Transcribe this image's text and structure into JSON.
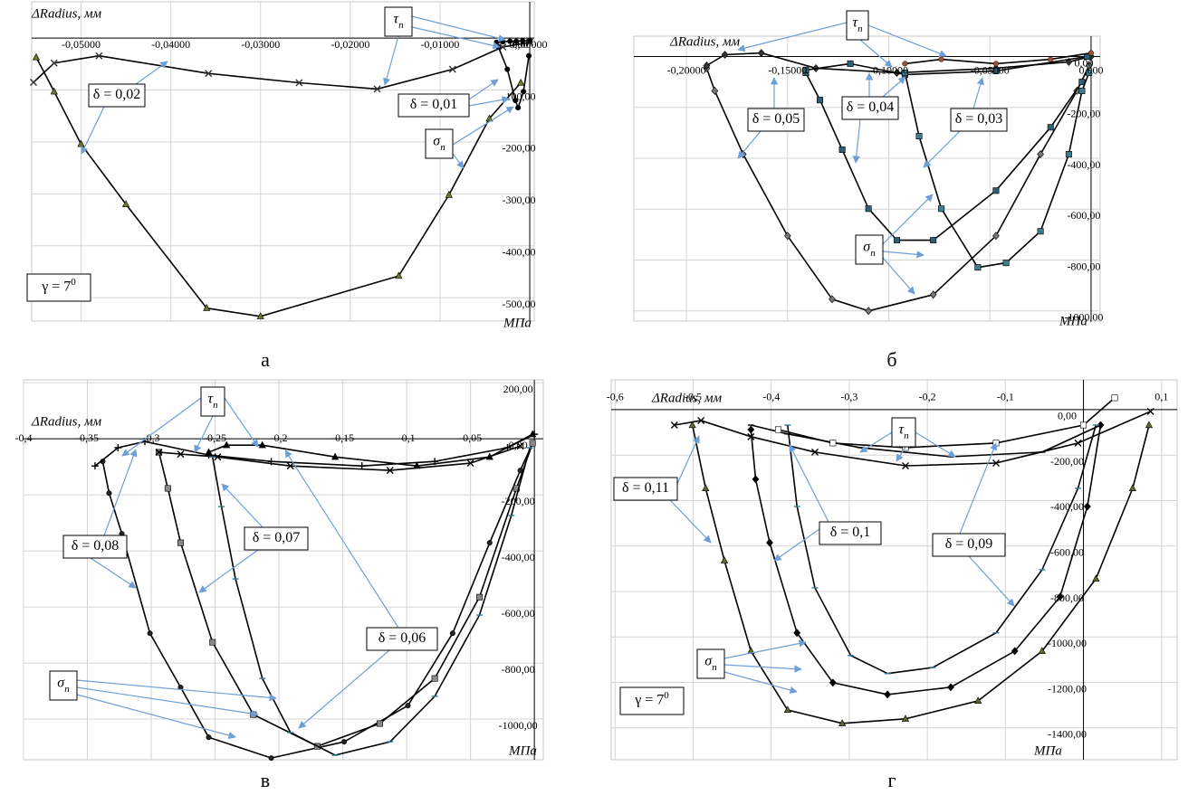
{
  "chart_data": [
    {
      "type": "line",
      "caption": "а",
      "x_label": "ΔRadius, мм",
      "y_label": "МПа",
      "grid": true,
      "xlim": [
        -0.0555,
        0.0005
      ],
      "ylim": [
        -545,
        70
      ],
      "xticks": [
        {
          "value": -0.05,
          "label": "-0,05000"
        },
        {
          "value": -0.04,
          "label": "-0,04000"
        },
        {
          "value": -0.03,
          "label": "-0,03000"
        },
        {
          "value": -0.02,
          "label": "-0,02000"
        },
        {
          "value": -0.01,
          "label": "-0,01000"
        },
        {
          "value": 0,
          "label": "0,00000"
        }
      ],
      "yticks": [
        {
          "value": 0,
          "label": "0,00"
        },
        {
          "value": -100,
          "label": "-100,00"
        },
        {
          "value": -200,
          "label": "-200,00"
        },
        {
          "value": -300,
          "label": "-300,00"
        },
        {
          "value": -400,
          "label": "-400,00"
        },
        {
          "value": -500,
          "label": "-500,00"
        }
      ],
      "series": [
        {
          "color": "#000000",
          "marker": "triangle",
          "marker_color": "#6b7a2a",
          "x": [
            -0.055,
            -0.053,
            -0.05,
            -0.045,
            -0.036,
            -0.03,
            -0.0146,
            -0.009,
            -0.0045,
            -0.001
          ],
          "values": [
            -37,
            -103,
            -204,
            -320,
            -520,
            -536,
            -458,
            -302,
            -155,
            -86
          ]
        },
        {
          "color": "#000000",
          "marker": "x",
          "marker_color": "#333333",
          "x": [
            -0.0553,
            -0.053,
            -0.048,
            -0.0358,
            -0.0257,
            -0.017,
            -0.0086,
            -0.003,
            0
          ],
          "values": [
            -85,
            -48,
            -34,
            -68,
            -86,
            -98,
            -60,
            -17,
            -8
          ]
        },
        {
          "color": "#000000",
          "marker": "circle",
          "marker_color": "#000000",
          "x": [
            -0.0035,
            -0.0025,
            -0.0016,
            -0.0013,
            -0.0007,
            -0.0001
          ],
          "values": [
            -17,
            -60,
            -120,
            -134,
            -103,
            -34
          ]
        },
        {
          "color": "#000000",
          "marker": "circle",
          "marker_color": "#000000",
          "x": [
            -0.0037,
            -0.003,
            -0.0022,
            -0.0015,
            -0.0008,
            0
          ],
          "values": [
            -8,
            -7,
            -6,
            -6,
            -5,
            -5
          ]
        }
      ],
      "annotations": [
        {
          "text": "τ",
          "sub": "n"
        },
        {
          "text": "δ = 0,02"
        },
        {
          "text": "δ = 0,01"
        },
        {
          "text": "σ",
          "sub": "n"
        },
        {
          "text": "γ = 7",
          "sup": "0"
        }
      ]
    },
    {
      "type": "line",
      "caption": "б",
      "x_label": "ΔRadius, мм",
      "y_label": "МПа",
      "grid": true,
      "xlim": [
        -0.226,
        0.0045
      ],
      "ylim": [
        -1040,
        80
      ],
      "xticks": [
        {
          "value": -0.2,
          "label": "-0,20000"
        },
        {
          "value": -0.15,
          "label": "-0,15000"
        },
        {
          "value": -0.1,
          "label": "-0,10000"
        },
        {
          "value": -0.05,
          "label": "-0,05000"
        },
        {
          "value": 0,
          "label": "0,000"
        }
      ],
      "yticks": [
        {
          "value": 0,
          "label": "0,00"
        },
        {
          "value": -200,
          "label": "-200,00"
        },
        {
          "value": -400,
          "label": "-400,00"
        },
        {
          "value": -600,
          "label": "-600,00"
        },
        {
          "value": -800,
          "label": "-800,00"
        },
        {
          "value": -1000,
          "label": "-1000,00"
        }
      ],
      "series": [
        {
          "color": "#000000",
          "marker": "diamond",
          "marker_color": "#777777",
          "x": [
            -0.19,
            -0.186,
            -0.172,
            -0.15,
            -0.128,
            -0.11,
            -0.078,
            -0.047,
            -0.025,
            -0.007,
            -0.001
          ],
          "values": [
            -46,
            -135,
            -384,
            -705,
            -954,
            -1000,
            -936,
            -705,
            -384,
            -135,
            -36
          ]
        },
        {
          "color": "#000000",
          "marker": "diamond",
          "marker_color": "#333333",
          "x": [
            -0.19,
            -0.181,
            -0.163,
            -0.136,
            -0.096,
            -0.047,
            -0.011,
            0
          ],
          "values": [
            -36,
            7,
            14,
            -46,
            -64,
            -46,
            -21,
            0
          ]
        },
        {
          "color": "#000000",
          "marker": "square",
          "marker_color": "#2f5f73",
          "x": [
            -0.141,
            -0.134,
            -0.123,
            -0.11,
            -0.096,
            -0.078,
            -0.047,
            -0.02,
            -0.0045
          ],
          "values": [
            -64,
            -171,
            -366,
            -598,
            -722,
            -722,
            -527,
            -278,
            -100
          ]
        },
        {
          "color": "#000000",
          "marker": "square",
          "marker_color": "#2f5f73",
          "x": [
            -0.141,
            -0.119,
            -0.092,
            -0.047,
            -0.002
          ],
          "values": [
            -53,
            -28,
            -71,
            -57,
            0
          ]
        },
        {
          "color": "#000000",
          "marker": "square",
          "marker_color": "#3b7f8f",
          "x": [
            -0.092,
            -0.085,
            -0.074,
            -0.056,
            -0.042,
            -0.025,
            -0.011,
            -0.0045,
            -0.001
          ],
          "values": [
            -64,
            -313,
            -598,
            -829,
            -811,
            -687,
            -384,
            -135,
            -64
          ]
        },
        {
          "color": "#000000",
          "marker": "circle",
          "marker_color": "#a0522d",
          "x": [
            -0.092,
            -0.074,
            -0.047,
            -0.02,
            0
          ],
          "values": [
            -28,
            -11,
            -28,
            -11,
            14
          ]
        }
      ],
      "annotations": [
        {
          "text": "τ",
          "sub": "n"
        },
        {
          "text": "δ = 0,05"
        },
        {
          "text": "δ = 0,04"
        },
        {
          "text": "δ = 0,03"
        },
        {
          "text": "σ",
          "sub": "n"
        }
      ]
    },
    {
      "type": "line",
      "caption": "в",
      "x_label": "ΔRadius, мм",
      "y_label": "МПа",
      "grid": true,
      "xlim": [
        -0.4,
        0.007
      ],
      "ylim": [
        -1145,
        210
      ],
      "xticks": [
        {
          "value": -0.4,
          "label": "-0,4"
        },
        {
          "value": -0.35,
          "label": "-0,35"
        },
        {
          "value": -0.3,
          "label": "-0,3"
        },
        {
          "value": -0.25,
          "label": "-0,25"
        },
        {
          "value": -0.2,
          "label": "-0,2"
        },
        {
          "value": -0.15,
          "label": "-0,15"
        },
        {
          "value": -0.1,
          "label": "-0,1"
        },
        {
          "value": -0.05,
          "label": "-0,05"
        }
      ],
      "yticks": [
        {
          "value": 200,
          "label": "200,00"
        },
        {
          "value": 0,
          "label": "0,00"
        },
        {
          "value": -200,
          "label": "-200,00"
        },
        {
          "value": -400,
          "label": "-400,00"
        },
        {
          "value": -600,
          "label": "-600,00"
        },
        {
          "value": -800,
          "label": "-800,00"
        },
        {
          "value": -1000,
          "label": "-1000,00"
        }
      ],
      "series": [
        {
          "color": "#000000",
          "marker": "circle",
          "marker_color": "#222222",
          "x": [
            -0.338,
            -0.333,
            -0.323,
            -0.301,
            -0.277,
            -0.255,
            -0.206,
            -0.149,
            -0.099,
            -0.064,
            -0.035,
            -0.011,
            -0.0014
          ],
          "values": [
            -81,
            -194,
            -339,
            -694,
            -887,
            -1065,
            -1139,
            -1081,
            -952,
            -694,
            -371,
            -113,
            -16
          ]
        },
        {
          "color": "#000000",
          "marker": "plus",
          "marker_color": "#000000",
          "x": [
            -0.344,
            -0.326,
            -0.305,
            -0.255,
            -0.206,
            -0.135,
            -0.078,
            -0.021,
            0
          ],
          "values": [
            -97,
            -32,
            -10,
            -58,
            -81,
            -97,
            -81,
            -32,
            16
          ]
        },
        {
          "color": "#000000",
          "marker": "square",
          "marker_color": "#888888",
          "x": [
            -0.294,
            -0.287,
            -0.277,
            -0.252,
            -0.22,
            -0.17,
            -0.121,
            -0.078,
            -0.043,
            -0.014,
            -0.0014
          ],
          "values": [
            -48,
            -177,
            -371,
            -726,
            -984,
            -1097,
            -1016,
            -855,
            -565,
            -177,
            -16
          ]
        },
        {
          "color": "#000000",
          "marker": "x",
          "marker_color": "#000000",
          "x": [
            -0.294,
            -0.277,
            -0.248,
            -0.191,
            -0.113,
            -0.05,
            -0.011
          ],
          "values": [
            -48,
            -55,
            -65,
            -97,
            -113,
            -87,
            -26
          ]
        },
        {
          "color": "#000000",
          "marker": "dash",
          "marker_color": "#2e7d9a",
          "x": [
            -0.252,
            -0.245,
            -0.234,
            -0.213,
            -0.191,
            -0.156,
            -0.113,
            -0.078,
            -0.043,
            -0.018,
            -0.0035
          ],
          "values": [
            -65,
            -242,
            -500,
            -855,
            -1048,
            -1129,
            -1081,
            -919,
            -629,
            -274,
            -32
          ]
        },
        {
          "color": "#000000",
          "marker": "triangle",
          "marker_color": "#000000",
          "x": [
            -0.255,
            -0.241,
            -0.213,
            -0.156,
            -0.092,
            -0.035,
            -0.0014
          ],
          "values": [
            -48,
            -23,
            -23,
            -65,
            -97,
            -65,
            16
          ]
        }
      ],
      "annotations": [
        {
          "text": "τ",
          "sub": "n"
        },
        {
          "text": "δ = 0,08"
        },
        {
          "text": "δ = 0,07"
        },
        {
          "text": "δ = 0,06"
        },
        {
          "text": "σ",
          "sub": "n"
        }
      ]
    },
    {
      "type": "line",
      "caption": "г",
      "x_label": "ΔRadius, мм",
      "y_label": "МПа",
      "grid": true,
      "xlim": [
        -0.605,
        0.12
      ],
      "ylim": [
        -1540,
        131
      ],
      "xticks": [
        {
          "value": -0.6,
          "label": "-0,6"
        },
        {
          "value": -0.5,
          "label": "-0,5"
        },
        {
          "value": -0.4,
          "label": "-0,4"
        },
        {
          "value": -0.3,
          "label": "-0,3"
        },
        {
          "value": -0.2,
          "label": "-0,2"
        },
        {
          "value": -0.1,
          "label": "-0,1"
        },
        {
          "value": 0.1,
          "label": "0,1"
        }
      ],
      "yticks": [
        {
          "value": 0,
          "label": "0,00"
        },
        {
          "value": -200,
          "label": "-200,00"
        },
        {
          "value": -400,
          "label": "-400,00"
        },
        {
          "value": -600,
          "label": "-600,00"
        },
        {
          "value": -800,
          "label": "-800,00"
        },
        {
          "value": -1000,
          "label": "-1000,00"
        },
        {
          "value": -1200,
          "label": "-1200,00"
        },
        {
          "value": -1400,
          "label": "-1400,00"
        }
      ],
      "series": [
        {
          "color": "#000000",
          "marker": "triangle",
          "marker_color": "#5a6b2a",
          "x": [
            -0.501,
            -0.484,
            -0.46,
            -0.426,
            -0.379,
            -0.309,
            -0.228,
            -0.135,
            -0.053,
            0.016,
            0.063,
            0.084
          ],
          "values": [
            -68,
            -346,
            -664,
            -1062,
            -1321,
            -1380,
            -1360,
            -1281,
            -1062,
            -744,
            -346,
            -68
          ]
        },
        {
          "color": "#000000",
          "marker": "x",
          "marker_color": "#000000",
          "x": [
            -0.524,
            -0.49,
            -0.426,
            -0.344,
            -0.228,
            -0.112,
            -0.007,
            0.086
          ],
          "values": [
            -68,
            -48,
            -119,
            -187,
            -247,
            -235,
            -147,
            -8
          ]
        },
        {
          "color": "#000000",
          "marker": "diamond",
          "marker_color": "#000000",
          "x": [
            -0.426,
            -0.42,
            -0.402,
            -0.367,
            -0.321,
            -0.251,
            -0.17,
            -0.088,
            -0.03,
            0.005,
            0.022
          ],
          "values": [
            -88,
            -306,
            -585,
            -982,
            -1201,
            -1253,
            -1221,
            -1062,
            -823,
            -426,
            -68
          ]
        },
        {
          "color": "#000000",
          "marker": "dash",
          "marker_color": "#000000",
          "x": [
            -0.426,
            -0.379,
            -0.286,
            -0.17,
            -0.053,
            0.022
          ],
          "values": [
            -68,
            -107,
            -167,
            -207,
            -187,
            -68
          ]
        },
        {
          "color": "#000000",
          "marker": "dash",
          "marker_color": "#2e7d9a",
          "x": [
            -0.379,
            -0.367,
            -0.344,
            -0.298,
            -0.251,
            -0.193,
            -0.112,
            -0.053,
            -0.007,
            0.016
          ],
          "values": [
            -68,
            -426,
            -784,
            -1082,
            -1161,
            -1134,
            -982,
            -704,
            -346,
            -68
          ]
        },
        {
          "color": "#000000",
          "marker": "square",
          "marker_color": "#ffffff",
          "x": [
            -0.391,
            -0.321,
            -0.228,
            -0.112,
            0,
            0.04
          ],
          "values": [
            -88,
            -147,
            -167,
            -147,
            -68,
            52
          ]
        }
      ],
      "annotations": [
        {
          "text": "τ",
          "sub": "n"
        },
        {
          "text": "δ = 0,11"
        },
        {
          "text": "δ = 0,1"
        },
        {
          "text": "δ = 0,09"
        },
        {
          "text": "σ",
          "sub": "n"
        },
        {
          "text": "γ = 7",
          "sup": "0"
        }
      ]
    }
  ]
}
